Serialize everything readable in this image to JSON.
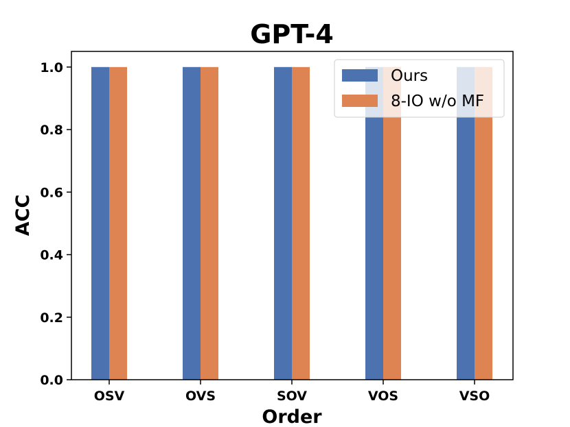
{
  "chart_data": {
    "type": "bar",
    "title": "GPT-4",
    "xlabel": "Order",
    "ylabel": "ACC",
    "categories": [
      "OSV",
      "OVS",
      "SOV",
      "VOS",
      "VSO"
    ],
    "series": [
      {
        "name": "Ours",
        "values": [
          1.0,
          1.0,
          1.0,
          1.0,
          1.0
        ],
        "color": "#4C72B0"
      },
      {
        "name": "8-IO w/o MF",
        "values": [
          1.0,
          1.0,
          1.0,
          1.0,
          1.0
        ],
        "color": "#DD8452"
      }
    ],
    "ylim": [
      0,
      1.05
    ],
    "yticks": [
      "0.0",
      "0.2",
      "0.4",
      "0.6",
      "0.8",
      "1.0"
    ],
    "grid": false,
    "legend_position": "top-right"
  }
}
